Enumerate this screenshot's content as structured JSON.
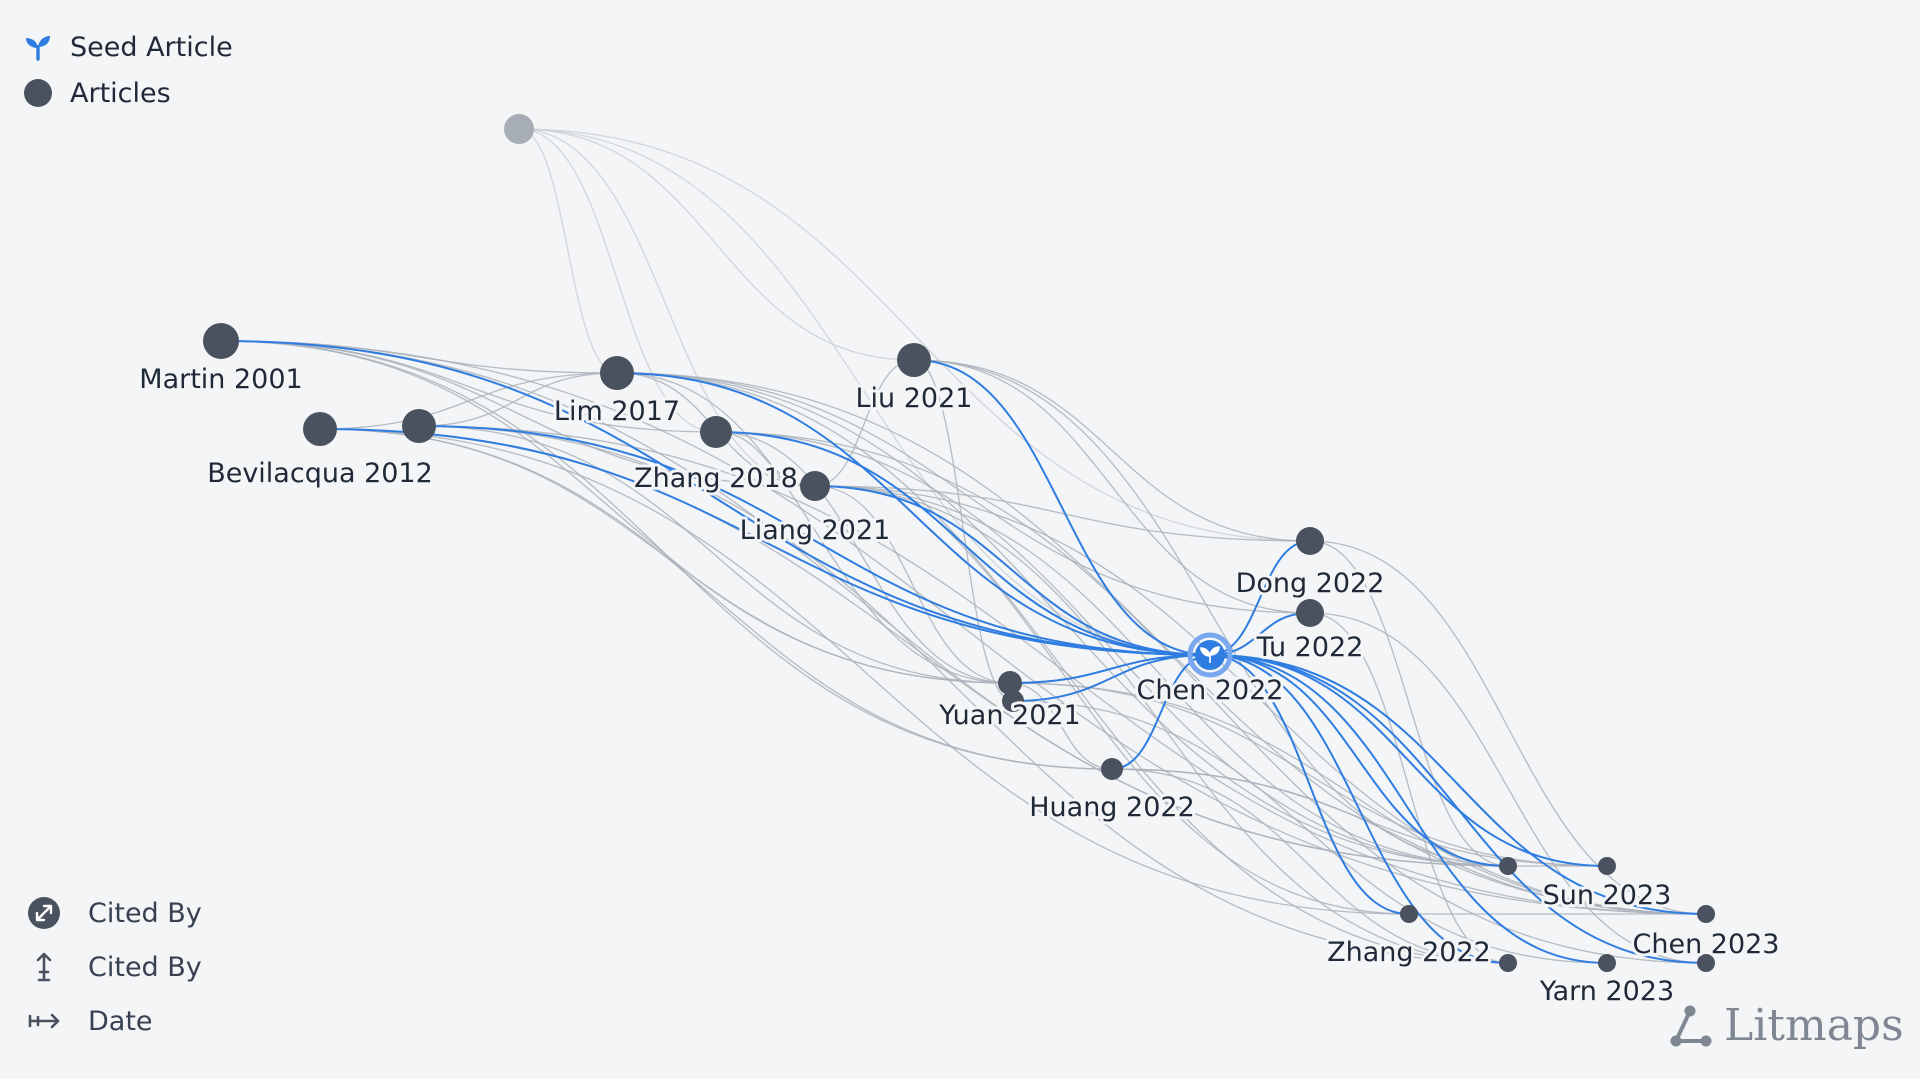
{
  "legend": {
    "seed_label": "Seed Article",
    "articles_label": "Articles"
  },
  "bottom_legend": {
    "size_label": "Cited By",
    "vertical_label": "Cited By",
    "horizontal_label": "Date"
  },
  "brand": {
    "name": "Litmaps"
  },
  "colors": {
    "background": "#f3f5f7",
    "node": "#4a5260",
    "faded_node": "#a7adb5",
    "seed_link": "#2f7de1",
    "link": "#aab1bb",
    "seed_ring": "#7aa8ee"
  },
  "nodes": [
    {
      "id": "faded",
      "label": "",
      "faded": true
    },
    {
      "id": "martin2001",
      "label": "Martin 2001"
    },
    {
      "id": "bevilacqua2012",
      "label": "Bevilacqua 2012"
    },
    {
      "id": "unlabeled2012",
      "label": ""
    },
    {
      "id": "lim2017",
      "label": "Lim 2017"
    },
    {
      "id": "zhang2018",
      "label": "Zhang 2018"
    },
    {
      "id": "liu2021",
      "label": "Liu 2021"
    },
    {
      "id": "liang2021",
      "label": "Liang 2021"
    },
    {
      "id": "yuan2021",
      "label": "Yuan 2021"
    },
    {
      "id": "yuan2021b",
      "label": ""
    },
    {
      "id": "dong2022",
      "label": "Dong 2022"
    },
    {
      "id": "tu2022",
      "label": "Tu 2022"
    },
    {
      "id": "chen2022",
      "label": "Chen 2022",
      "seed": true
    },
    {
      "id": "huang2022",
      "label": "Huang 2022"
    },
    {
      "id": "zhang2022",
      "label": "Zhang 2022"
    },
    {
      "id": "sun2023",
      "label": "Sun 2023"
    },
    {
      "id": "sun2023b",
      "label": ""
    },
    {
      "id": "chen2023",
      "label": "Chen 2023"
    },
    {
      "id": "chen2023b",
      "label": ""
    },
    {
      "id": "yarn2023",
      "label": "Yarn 2023"
    },
    {
      "id": "yarn2023b",
      "label": ""
    }
  ],
  "seed_links": [
    [
      "martin2001",
      "chen2022"
    ],
    [
      "bevilacqua2012",
      "chen2022"
    ],
    [
      "unlabeled2012",
      "chen2022"
    ],
    [
      "lim2017",
      "chen2022"
    ],
    [
      "zhang2018",
      "chen2022"
    ],
    [
      "liu2021",
      "chen2022"
    ],
    [
      "liang2021",
      "chen2022"
    ],
    [
      "yuan2021",
      "chen2022"
    ],
    [
      "yuan2021b",
      "chen2022"
    ],
    [
      "chen2022",
      "dong2022"
    ],
    [
      "chen2022",
      "tu2022"
    ],
    [
      "chen2022",
      "huang2022"
    ],
    [
      "chen2022",
      "zhang2022"
    ],
    [
      "chen2022",
      "sun2023"
    ],
    [
      "chen2022",
      "sun2023b"
    ],
    [
      "chen2022",
      "chen2023"
    ],
    [
      "chen2022",
      "chen2023b"
    ],
    [
      "chen2022",
      "yarn2023"
    ],
    [
      "chen2022",
      "yarn2023b"
    ]
  ],
  "links": [
    [
      "faded",
      "lim2017"
    ],
    [
      "faded",
      "liang2021"
    ],
    [
      "faded",
      "liu2021"
    ],
    [
      "faded",
      "chen2022"
    ],
    [
      "faded",
      "dong2022"
    ],
    [
      "faded",
      "zhang2018"
    ],
    [
      "martin2001",
      "lim2017"
    ],
    [
      "martin2001",
      "zhang2018"
    ],
    [
      "martin2001",
      "liang2021"
    ],
    [
      "martin2001",
      "yuan2021"
    ],
    [
      "martin2001",
      "sun2023"
    ],
    [
      "martin2001",
      "chen2023"
    ],
    [
      "martin2001",
      "huang2022"
    ],
    [
      "bevilacqua2012",
      "lim2017"
    ],
    [
      "bevilacqua2012",
      "yuan2021"
    ],
    [
      "bevilacqua2012",
      "sun2023"
    ],
    [
      "bevilacqua2012",
      "zhang2022"
    ],
    [
      "bevilacqua2012",
      "huang2022"
    ],
    [
      "unlabeled2012",
      "lim2017"
    ],
    [
      "unlabeled2012",
      "yuan2021"
    ],
    [
      "unlabeled2012",
      "chen2023"
    ],
    [
      "unlabeled2012",
      "yarn2023"
    ],
    [
      "lim2017",
      "liang2021"
    ],
    [
      "lim2017",
      "yuan2021"
    ],
    [
      "lim2017",
      "sun2023"
    ],
    [
      "lim2017",
      "chen2023"
    ],
    [
      "lim2017",
      "tu2022"
    ],
    [
      "lim2017",
      "yarn2023"
    ],
    [
      "zhang2018",
      "liang2021"
    ],
    [
      "zhang2018",
      "yuan2021"
    ],
    [
      "zhang2018",
      "sun2023"
    ],
    [
      "zhang2018",
      "chen2023b"
    ],
    [
      "zhang2018",
      "zhang2022"
    ],
    [
      "liu2021",
      "liang2021"
    ],
    [
      "liu2021",
      "dong2022"
    ],
    [
      "liu2021",
      "yuan2021b"
    ],
    [
      "liu2021",
      "sun2023"
    ],
    [
      "liu2021",
      "tu2022"
    ],
    [
      "liang2021",
      "yuan2021"
    ],
    [
      "liang2021",
      "sun2023"
    ],
    [
      "liang2021",
      "chen2023"
    ],
    [
      "liang2021",
      "dong2022"
    ],
    [
      "liang2021",
      "yarn2023"
    ],
    [
      "yuan2021",
      "huang2022"
    ],
    [
      "yuan2021",
      "sun2023b"
    ],
    [
      "yuan2021",
      "chen2023"
    ],
    [
      "yuan2021b",
      "yarn2023b"
    ],
    [
      "dong2022",
      "sun2023"
    ],
    [
      "dong2022",
      "chen2023"
    ],
    [
      "tu2022",
      "chen2023b"
    ],
    [
      "tu2022",
      "yarn2023"
    ],
    [
      "huang2022",
      "sun2023b"
    ],
    [
      "huang2022",
      "chen2023"
    ],
    [
      "huang2022",
      "yarn2023"
    ],
    [
      "zhang2022",
      "chen2023"
    ],
    [
      "sun2023b",
      "sun2023"
    ]
  ]
}
